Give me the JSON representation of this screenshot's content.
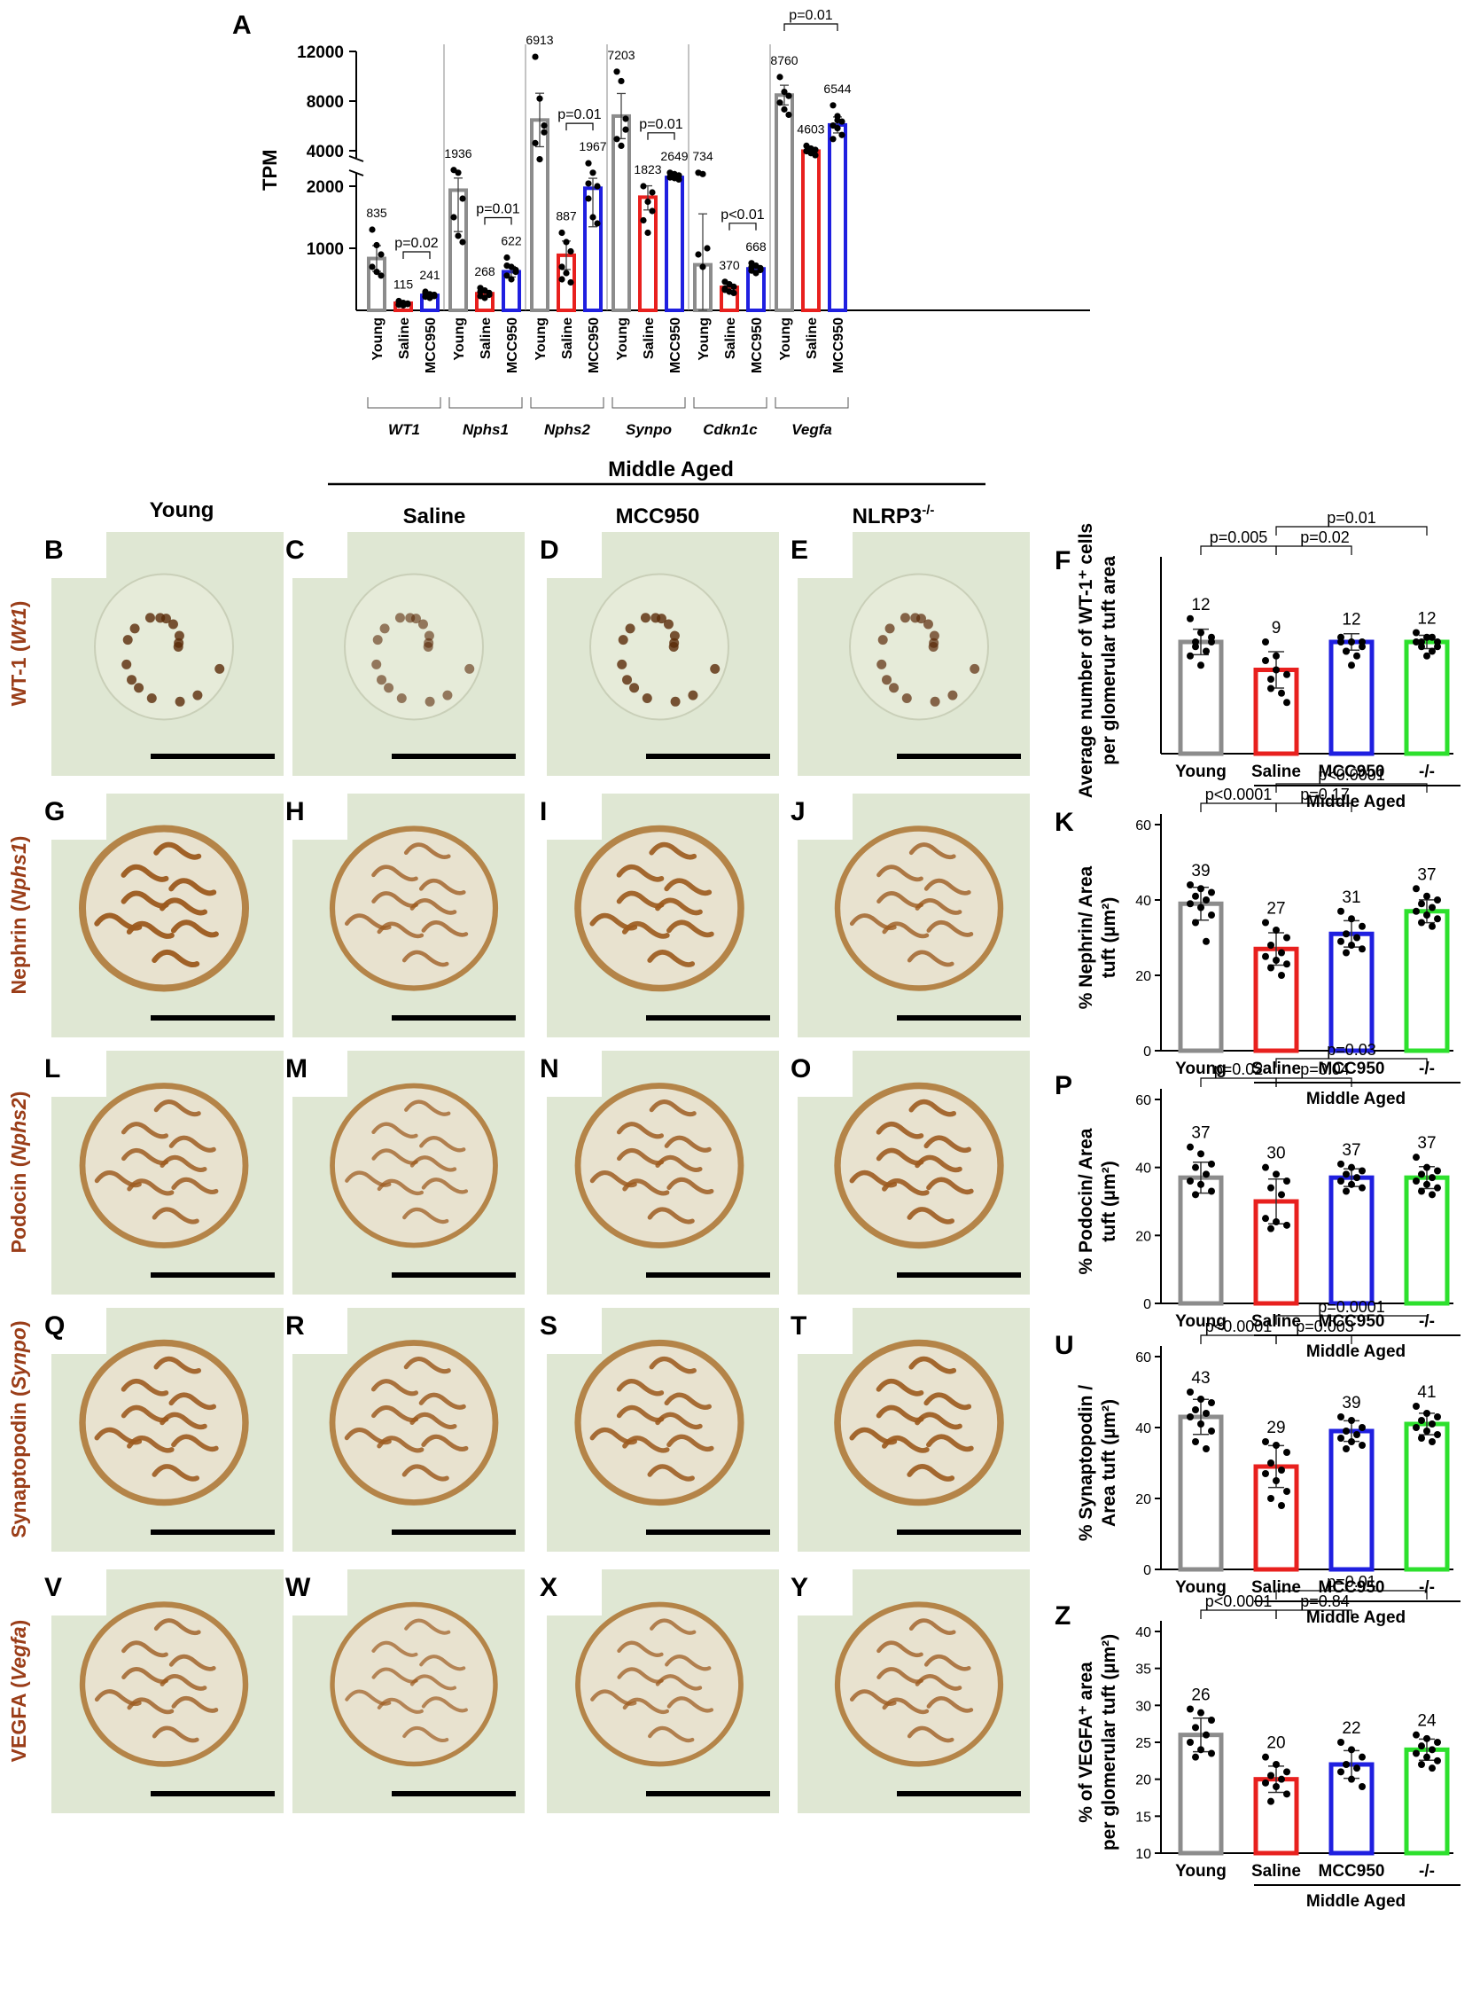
{
  "colors": {
    "young": "#8c8c8c",
    "saline": "#e8201e",
    "mcc950": "#1f1fe0",
    "ko": "#2de02d",
    "stain_label": "#9a3d18"
  },
  "panel_A": {
    "letter": "A",
    "ylabel": "TPM",
    "upper_ticks": [
      "12000",
      "8000",
      "4000"
    ],
    "lower_ticks": [
      "2000",
      "1000"
    ],
    "conditions": [
      "Young",
      "Saline",
      "MCC950"
    ]
  },
  "middle_aged_header": "Middle Aged",
  "column_headers": [
    "Young",
    "Saline",
    "MCC950",
    "NLRP3"
  ],
  "column_header_sup": "-/-",
  "row_labels": [
    {
      "protein": "WT-1 (",
      "gene": "Wt1",
      "close": ")"
    },
    {
      "protein": "Nephrin (",
      "gene": "Nphs1",
      "close": ")"
    },
    {
      "protein": "Podocin (",
      "gene": "Nphs2",
      "close": ")"
    },
    {
      "protein": "Synaptopodin (",
      "gene": "Synpo",
      "close": ")"
    },
    {
      "protein": "VEGFA (",
      "gene": "Vegfa",
      "close": ")"
    }
  ],
  "image_letters": [
    [
      "B",
      "C",
      "D",
      "E"
    ],
    [
      "G",
      "H",
      "I",
      "J"
    ],
    [
      "L",
      "M",
      "N",
      "O"
    ],
    [
      "Q",
      "R",
      "S",
      "T"
    ],
    [
      "V",
      "W",
      "X",
      "Y"
    ]
  ],
  "quant_common": {
    "categories": [
      "Young",
      "Saline",
      "MCC950",
      "-/-"
    ],
    "group_label": "Middle Aged"
  },
  "chart_data": [
    {
      "type": "bar",
      "panel": "A",
      "ylabel": "TPM",
      "broken_axis": true,
      "lower_ylim": [
        0,
        2000
      ],
      "upper_ylim": [
        2000,
        12000
      ],
      "genes": [
        {
          "name": "WT1",
          "values": [
            835,
            115,
            241
          ],
          "points": [
            [
              1300,
              1050,
              900,
              700,
              620,
              560
            ],
            [
              150,
              120,
              100,
              90,
              80,
              110
            ],
            [
              300,
              260,
              230,
              220,
              200,
              250,
              280
            ]
          ],
          "comparison": {
            "label": "p=0.02",
            "from": 1,
            "to": 2
          }
        },
        {
          "name": "Nphs1",
          "values": [
            1936,
            268,
            622
          ],
          "points": [
            [
              3200,
              3000,
              1800,
              1500,
              1200,
              1100
            ],
            [
              360,
              320,
              280,
              230,
              200,
              250,
              300
            ],
            [
              850,
              700,
              620,
              560,
              500,
              650,
              720
            ]
          ],
          "comparison": {
            "label": "p=0.01",
            "from": 1,
            "to": 2
          }
        },
        {
          "name": "Nphs2",
          "values": [
            6913,
            887,
            1967
          ],
          "points": [
            [
              11600,
              8500,
              6500,
              5200,
              4000,
              6000
            ],
            [
              1250,
              1100,
              950,
              700,
              600,
              450,
              500
            ],
            [
              3700,
              3000,
              2000,
              1800,
              1500,
              1400,
              2200
            ]
          ],
          "comparison": {
            "label": "p=0.01",
            "from": 1,
            "to": 2
          }
        },
        {
          "name": "Synpo",
          "values": [
            7203,
            1823,
            2649
          ],
          "points": [
            [
              10500,
              9800,
              7000,
              5500,
              5000,
              6200
            ],
            [
              2000,
              1750,
              1600,
              1450,
              1250,
              1900
            ],
            [
              3000,
              2900,
              2800,
              2700,
              2600,
              2500,
              2650
            ]
          ],
          "comparison": {
            "label": "p=0.01",
            "from": 1,
            "to": 2
          }
        },
        {
          "name": "Cdkn1c",
          "values": [
            734,
            370,
            668
          ],
          "points": [
            [
              3000,
              2900,
              1000,
              900,
              700
            ],
            [
              460,
              420,
              380,
              330,
              300,
              280,
              350
            ],
            [
              760,
              720,
              680,
              640,
              600,
              650,
              700
            ]
          ],
          "comparison": {
            "label": "p<0.01",
            "from": 1,
            "to": 2
          }
        },
        {
          "name": "Vegfa",
          "values": [
            8760,
            4603,
            6544
          ],
          "points": [
            [
              10100,
              9000,
              8700,
              8200,
              7700,
              7300
            ],
            [
              5000,
              4800,
              4700,
              4600,
              4450,
              4300,
              4600
            ],
            [
              8000,
              7200,
              6800,
              6500,
              6300,
              5800,
              5500,
              6900
            ]
          ],
          "comparison": {
            "label": "p=0.01",
            "from": 0,
            "to": 2
          }
        }
      ]
    },
    {
      "type": "bar",
      "panel": "F",
      "ylabel": "Average number of WT-1⁺ cells per glomerular tuft area",
      "categories": [
        "Young",
        "Saline",
        "MCC950",
        "-/-"
      ],
      "values": [
        12,
        9,
        12,
        12
      ],
      "ylim": [
        0,
        20
      ],
      "yticks": [],
      "points": [
        [
          14.5,
          13,
          12.5,
          12,
          11,
          10.5,
          9.5,
          12,
          11.5
        ],
        [
          12,
          10.5,
          8.5,
          7,
          6.5,
          10,
          9,
          5.5,
          8
        ],
        [
          12.5,
          12,
          11.5,
          11,
          10.5,
          12,
          9.5,
          12,
          11
        ],
        [
          13,
          12.5,
          12,
          11.5,
          11,
          12,
          10.5,
          11.5,
          12,
          12.5
        ]
      ],
      "comparisons": [
        {
          "label": "p=0.005",
          "from": 0,
          "to": 1
        },
        {
          "label": "p=0.02",
          "from": 1,
          "to": 2
        },
        {
          "label": "p=0.01",
          "from": 1,
          "to": 3
        }
      ]
    },
    {
      "type": "bar",
      "panel": "K",
      "ylabel": "% Nephrin/ Area tuft (µm²)",
      "categories": [
        "Young",
        "Saline",
        "MCC950",
        "-/-"
      ],
      "values": [
        39,
        27,
        31,
        37
      ],
      "ylim": [
        0,
        60
      ],
      "yticks": [
        0,
        20,
        40,
        60
      ],
      "points": [
        [
          44,
          43,
          42,
          41,
          40,
          39,
          38,
          36,
          34,
          29
        ],
        [
          34,
          32,
          30,
          28,
          26,
          25,
          24,
          23,
          22,
          20
        ],
        [
          37,
          35,
          33,
          31,
          30,
          29,
          28,
          27,
          26
        ],
        [
          43,
          41,
          40,
          39,
          38,
          37,
          36,
          35,
          34,
          33
        ]
      ],
      "comparisons": [
        {
          "label": "p<0.0001",
          "from": 0,
          "to": 1
        },
        {
          "label": "p=0.17",
          "from": 1,
          "to": 2
        },
        {
          "label": "p<0.0001",
          "from": 1,
          "to": 3
        }
      ]
    },
    {
      "type": "bar",
      "panel": "P",
      "ylabel": "% Podocin/ Area tuft (µm²)",
      "categories": [
        "Young",
        "Saline",
        "MCC950",
        "-/-"
      ],
      "values": [
        37,
        30,
        37,
        37
      ],
      "ylim": [
        0,
        60
      ],
      "yticks": [
        0,
        20,
        40,
        60
      ],
      "points": [
        [
          46,
          44,
          41,
          40,
          38,
          36,
          35,
          33,
          32
        ],
        [
          40,
          38,
          36,
          34,
          32,
          25,
          24,
          23,
          22
        ],
        [
          41,
          40,
          39,
          38,
          37,
          36,
          35,
          34,
          33
        ],
        [
          43,
          40,
          39,
          38,
          37,
          36,
          35,
          34,
          33,
          32
        ]
      ],
      "comparisons": [
        {
          "label": "p=0.02",
          "from": 0,
          "to": 1
        },
        {
          "label": "p=0.04",
          "from": 1,
          "to": 2
        },
        {
          "label": "p=0.03",
          "from": 1,
          "to": 3
        }
      ]
    },
    {
      "type": "bar",
      "panel": "U",
      "ylabel": "% Synaptopodin / Area tuft (µm²)",
      "categories": [
        "Young",
        "Saline",
        "MCC950",
        "-/-"
      ],
      "values": [
        43,
        29,
        39,
        41
      ],
      "ylim": [
        0,
        60
      ],
      "yticks": [
        0,
        20,
        40,
        60
      ],
      "points": [
        [
          50,
          48,
          47,
          45,
          44,
          43,
          41,
          39,
          36,
          34
        ],
        [
          36,
          35,
          33,
          30,
          28,
          27,
          25,
          22,
          20,
          18
        ],
        [
          43,
          42,
          40,
          39,
          38,
          37,
          36,
          35,
          34
        ],
        [
          46,
          44,
          43,
          42,
          41,
          40,
          39,
          38,
          37,
          36
        ]
      ],
      "comparisons": [
        {
          "label": "p<0.0001",
          "from": 0,
          "to": 1
        },
        {
          "label": "p=0.003",
          "from": 1,
          "to": 2
        },
        {
          "label": "p=0.0001",
          "from": 1,
          "to": 3
        }
      ]
    },
    {
      "type": "bar",
      "panel": "Z",
      "ylabel": "% of VEGFA⁺ area per glomerular tuft (µm²)",
      "categories": [
        "Young",
        "Saline",
        "MCC950",
        "-/-"
      ],
      "values": [
        26,
        20,
        22,
        24
      ],
      "ylim": [
        10,
        40
      ],
      "yticks": [
        10,
        15,
        20,
        25,
        30,
        35,
        40
      ],
      "points": [
        [
          29.5,
          29,
          28,
          27,
          26,
          25,
          24,
          23.5,
          23
        ],
        [
          23,
          22,
          21,
          20.5,
          20,
          19.5,
          19,
          18,
          17
        ],
        [
          25,
          24,
          23,
          22,
          21.5,
          21,
          20,
          19
        ],
        [
          26,
          25.5,
          25,
          24.5,
          24,
          23.5,
          23,
          22.5,
          22,
          21.5
        ]
      ],
      "comparisons": [
        {
          "label": "p<0.0001",
          "from": 0,
          "to": 1
        },
        {
          "label": "p=0.84",
          "from": 1,
          "to": 2
        },
        {
          "label": "p=0.01",
          "from": 1,
          "to": 3
        }
      ]
    }
  ]
}
